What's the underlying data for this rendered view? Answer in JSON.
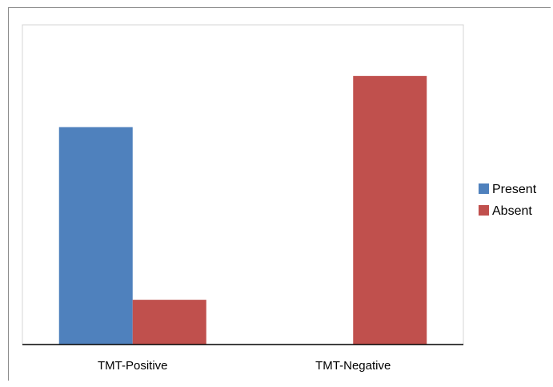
{
  "chart_data": {
    "type": "bar",
    "title": "",
    "xlabel": "",
    "ylabel": "",
    "categories": [
      "TMT-Positive",
      "TMT-Negative"
    ],
    "series": [
      {
        "name": "Present",
        "color": "#4f81bd",
        "values": [
          34,
          0
        ]
      },
      {
        "name": "Absent",
        "color": "#c0504d",
        "values": [
          7,
          42
        ]
      }
    ],
    "ylim": [
      0,
      50
    ],
    "grid": false,
    "legend": "right"
  }
}
